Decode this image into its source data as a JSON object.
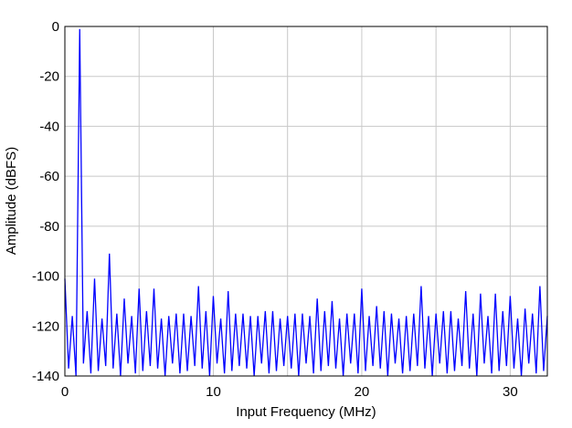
{
  "chart_data": {
    "type": "line",
    "x_label": "Input Frequency (MHz)",
    "y_label": "Amplitude (dBFS)",
    "xlim": [
      0,
      32.5
    ],
    "ylim": [
      -140,
      0
    ],
    "xticks": [
      0,
      10,
      20,
      30
    ],
    "x_minor_ticks": [
      5,
      15,
      25
    ],
    "yticks": [
      0,
      -20,
      -40,
      -60,
      -80,
      -100,
      -120,
      -140
    ],
    "grid": true,
    "x": [
      0,
      0.25,
      0.5,
      0.75,
      1,
      1.25,
      1.5,
      1.75,
      2,
      2.25,
      2.5,
      2.75,
      3,
      3.25,
      3.5,
      3.75,
      4,
      4.25,
      4.5,
      4.75,
      5,
      5.25,
      5.5,
      5.75,
      6,
      6.25,
      6.5,
      6.75,
      7,
      7.25,
      7.5,
      7.75,
      8,
      8.25,
      8.5,
      8.75,
      9,
      9.25,
      9.5,
      9.75,
      10,
      10.25,
      10.5,
      10.75,
      11,
      11.25,
      11.5,
      11.75,
      12,
      12.25,
      12.5,
      12.75,
      13,
      13.25,
      13.5,
      13.75,
      14,
      14.25,
      14.5,
      14.75,
      15,
      15.25,
      15.5,
      15.75,
      16,
      16.25,
      16.5,
      16.75,
      17,
      17.25,
      17.5,
      17.75,
      18,
      18.25,
      18.5,
      18.75,
      19,
      19.25,
      19.5,
      19.75,
      20,
      20.25,
      20.5,
      20.75,
      21,
      21.25,
      21.5,
      21.75,
      22,
      22.25,
      22.5,
      22.75,
      23,
      23.25,
      23.5,
      23.75,
      24,
      24.25,
      24.5,
      24.75,
      25,
      25.25,
      25.5,
      25.75,
      26,
      26.25,
      26.5,
      26.75,
      27,
      27.25,
      27.5,
      27.75,
      28,
      28.25,
      28.5,
      28.75,
      29,
      29.25,
      29.5,
      29.75,
      30,
      30.25,
      30.5,
      30.75,
      31,
      31.25,
      31.5,
      31.75,
      32,
      32.25,
      32.5
    ],
    "series": [
      {
        "color": "#0000ff",
        "values": [
          -101,
          -137,
          -116,
          -140,
          -1,
          -135,
          -114,
          -139,
          -101,
          -138,
          -117,
          -136,
          -91,
          -137,
          -115,
          -140,
          -109,
          -135,
          -116,
          -139,
          -105,
          -138,
          -114,
          -136,
          -105,
          -137,
          -117,
          -140,
          -116,
          -135,
          -115,
          -139,
          -115,
          -138,
          -116,
          -136,
          -104,
          -137,
          -114,
          -140,
          -108,
          -135,
          -117,
          -139,
          -106,
          -138,
          -115,
          -136,
          -115,
          -137,
          -116,
          -140,
          -116,
          -135,
          -114,
          -139,
          -114,
          -138,
          -117,
          -136,
          -116,
          -137,
          -115,
          -140,
          -115,
          -135,
          -116,
          -139,
          -109,
          -138,
          -114,
          -136,
          -110,
          -137,
          -117,
          -140,
          -115,
          -135,
          -115,
          -139,
          -105,
          -138,
          -116,
          -136,
          -112,
          -137,
          -114,
          -140,
          -115,
          -135,
          -117,
          -139,
          -116,
          -138,
          -115,
          -136,
          -104,
          -137,
          -116,
          -140,
          -115,
          -135,
          -114,
          -139,
          -114,
          -138,
          -117,
          -136,
          -106,
          -137,
          -115,
          -140,
          -107,
          -135,
          -116,
          -139,
          -107,
          -138,
          -114,
          -136,
          -108,
          -137,
          -117,
          -140,
          -113,
          -135,
          -115,
          -139,
          -104,
          -138,
          -116
        ]
      }
    ]
  }
}
